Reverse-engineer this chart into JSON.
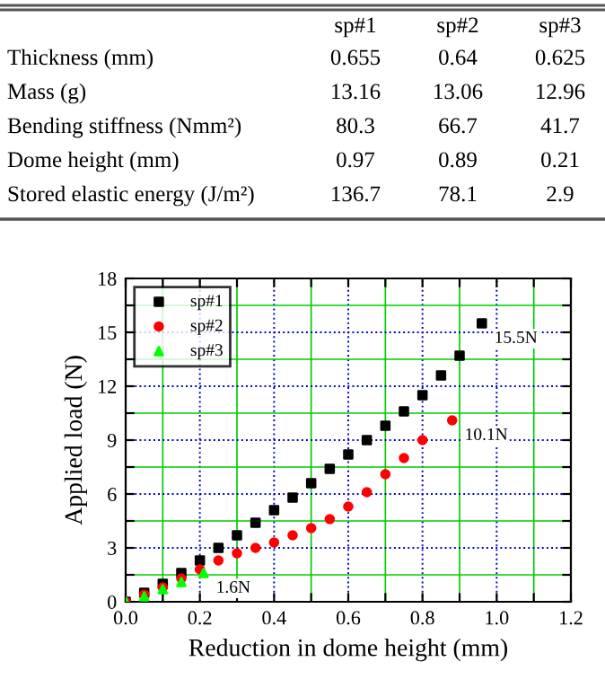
{
  "chart_data": [
    {
      "type": "other",
      "categories": [
        "sp#1",
        "sp#2",
        "sp#3"
      ],
      "y_categories": [
        "Thickness (mm)",
        "Mass (g)",
        "Bending stiffness (Nmm²)",
        "Dome height (mm)",
        "Stored elastic energy (J/m²)"
      ],
      "cell_labels": [
        [
          "0.655",
          "0.64",
          "0.625"
        ],
        [
          "13.16",
          "13.06",
          "12.96"
        ],
        [
          "80.3",
          "66.7",
          "41.7"
        ],
        [
          "0.97",
          "0.89",
          "0.21"
        ],
        [
          "136.7",
          "78.1",
          "2.9"
        ]
      ]
    },
    {
      "type": "scatter",
      "xlabel": "Reduction in dome height (mm)",
      "ylabel": "Applied load (N)",
      "xlim": [
        0.0,
        1.2
      ],
      "xticks": [
        {
          "value": 0,
          "label": "0.0"
        },
        {
          "value": 0.1,
          "label": null
        },
        0.2,
        {
          "value": 0.3,
          "label": null
        },
        0.4,
        {
          "value": 0.5,
          "label": null
        },
        0.6,
        {
          "value": 0.7,
          "label": null
        },
        0.8,
        {
          "value": 0.9,
          "label": null
        },
        {
          "value": 1,
          "label": "1.0"
        },
        {
          "value": 1.1,
          "label": null
        },
        1.2
      ],
      "ylim": [
        0,
        18
      ],
      "yticks": [
        0,
        {
          "value": 1.5,
          "label": null
        },
        3,
        {
          "value": 4.5,
          "label": null
        },
        6,
        {
          "value": 7.5,
          "label": null
        },
        9,
        {
          "value": 10.5,
          "label": null
        },
        12,
        {
          "value": 13.5,
          "label": null
        },
        15,
        {
          "value": 16.5,
          "label": null
        },
        18
      ],
      "grid": true,
      "legend": "top left",
      "series": [
        {
          "name": "sp#1",
          "color": "#000000",
          "marker": "square",
          "x": [
            0,
            0.05,
            0.1,
            0.15,
            0.2,
            0.25,
            0.3,
            0.35,
            0.4,
            0.45,
            0.5,
            0.55,
            0.6,
            0.65,
            0.7,
            0.75,
            0.8,
            0.85,
            0.9,
            0.96
          ],
          "values": [
            0,
            0.5,
            1.0,
            1.6,
            2.3,
            3.0,
            3.7,
            4.4,
            5.1,
            5.8,
            6.6,
            7.4,
            8.2,
            9.0,
            9.8,
            10.6,
            11.5,
            12.6,
            13.7,
            15.5
          ]
        },
        {
          "name": "sp#2",
          "color": "#ff0000",
          "marker": "circle",
          "x": [
            0,
            0.05,
            0.1,
            0.15,
            0.2,
            0.25,
            0.3,
            0.35,
            0.4,
            0.45,
            0.5,
            0.55,
            0.6,
            0.65,
            0.7,
            0.75,
            0.8,
            0.88
          ],
          "values": [
            0,
            0.4,
            0.8,
            1.3,
            1.8,
            2.3,
            2.7,
            3.0,
            3.3,
            3.7,
            4.1,
            4.6,
            5.3,
            6.1,
            7.1,
            8.0,
            9.0,
            10.1
          ]
        },
        {
          "name": "sp#3",
          "color": "#00ff00",
          "marker": "triangle",
          "x": [
            0,
            0.05,
            0.1,
            0.15,
            0.21
          ],
          "values": [
            0,
            0.3,
            0.7,
            1.1,
            1.6
          ]
        }
      ],
      "annotations": [
        {
          "text": "15.5N",
          "x": 0.96,
          "y": 15.5
        },
        {
          "text": "10.1N",
          "x": 0.88,
          "y": 10.1
        },
        {
          "text": "1.6N",
          "x": 0.21,
          "y": 1.6
        }
      ]
    }
  ]
}
